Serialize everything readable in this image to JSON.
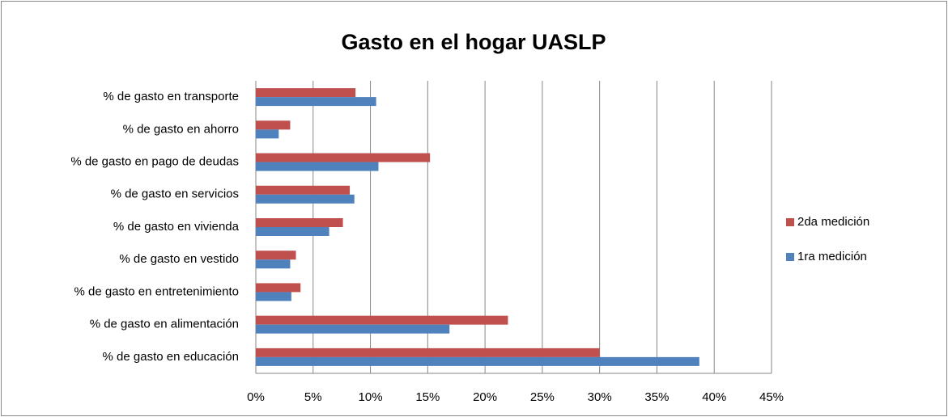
{
  "chart_data": {
    "type": "bar",
    "orientation": "horizontal",
    "title": "Gasto en el hogar UASLP",
    "categories": [
      "% de gasto en educación",
      "% de gasto en alimentación",
      "% de gasto en entretenimiento",
      "% de gasto en vestido",
      "% de gasto en vivienda",
      "% de gasto en servicios",
      "% de gasto en pago de deudas",
      "% de gasto en ahorro",
      "% de gasto en transporte"
    ],
    "series": [
      {
        "name": "2da medición",
        "color": "#c0504d",
        "values": [
          30.0,
          22.0,
          3.9,
          3.5,
          7.6,
          8.2,
          15.2,
          3.0,
          8.7
        ]
      },
      {
        "name": "1ra medición",
        "color": "#4f81bd",
        "values": [
          38.7,
          16.9,
          3.1,
          3.0,
          6.4,
          8.6,
          10.7,
          2.0,
          10.5
        ]
      }
    ],
    "xlim": [
      0,
      45
    ],
    "xticks": [
      {
        "value": 0,
        "label": "0%"
      },
      {
        "value": 5,
        "label": "5%"
      },
      {
        "value": 10,
        "label": "10%"
      },
      {
        "value": 15,
        "label": "15%"
      },
      {
        "value": 20,
        "label": "20%"
      },
      {
        "value": 25,
        "label": "25%"
      },
      {
        "value": 30,
        "label": "30%"
      },
      {
        "value": 35,
        "label": "35%"
      },
      {
        "value": 40,
        "label": "40%"
      },
      {
        "value": 45,
        "label": "45%"
      }
    ],
    "grid": true,
    "legend": "right"
  }
}
